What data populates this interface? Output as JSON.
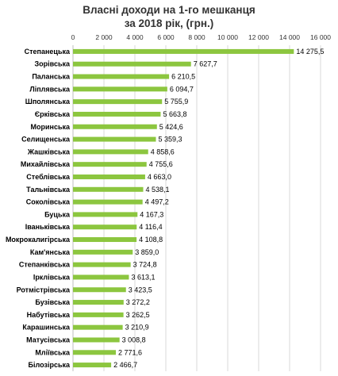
{
  "chart_data": {
    "type": "bar",
    "orientation": "horizontal",
    "title_lines": [
      "Власні доходи на 1-го мешканця",
      "за 2018 рік, (грн.)"
    ],
    "xlim": [
      0,
      16000
    ],
    "xticks": [
      0,
      2000,
      4000,
      6000,
      8000,
      10000,
      12000,
      14000,
      16000
    ],
    "xtick_labels": [
      "0",
      "2 000",
      "4 000",
      "6 000",
      "8 000",
      "10 000",
      "12 000",
      "14 000",
      "16 000"
    ],
    "grid": true,
    "bar_color": "#8CC63F",
    "categories": [
      "Степанецька",
      "Зорівська",
      "Паланська",
      "Ліплявська",
      "Шполянська",
      "Єрківська",
      "Моринська",
      "Селищенська",
      "Жашківська",
      "Михайлівська",
      "Стеблівська",
      "Тальнівська",
      "Соколівська",
      "Буцька",
      "Іваньківська",
      "Мокрокалигірська",
      "Кам'янська",
      "Степанківська",
      "Ірклівська",
      "Ротмістрівська",
      "Бузівська",
      "Набутівська",
      "Карашинська",
      "Матусівська",
      "Мліївська",
      "Білозірська"
    ],
    "values": [
      14275.5,
      7627.7,
      6210.5,
      6094.7,
      5755.9,
      5663.8,
      5424.6,
      5359.3,
      4858.6,
      4755.6,
      4663.0,
      4538.1,
      4497.2,
      4167.3,
      4116.4,
      4108.8,
      3859.0,
      3724.8,
      3613.1,
      3423.5,
      3272.2,
      3262.5,
      3210.9,
      3008.8,
      2771.6,
      2466.7
    ],
    "value_labels": [
      "14 275,5",
      "7 627,7",
      "6 210,5",
      "6 094,7",
      "5 755,9",
      "5 663,8",
      "5 424,6",
      "5 359,3",
      "4 858,6",
      "4 755,6",
      "4 663,0",
      "4 538,1",
      "4 497,2",
      "4 167,3",
      "4 116,4",
      "4 108,8",
      "3 859,0",
      "3 724,8",
      "3 613,1",
      "3 423,5",
      "3 272,2",
      "3 262,5",
      "3 210,9",
      "3 008,8",
      "2 771,6",
      "2 466,7"
    ]
  }
}
